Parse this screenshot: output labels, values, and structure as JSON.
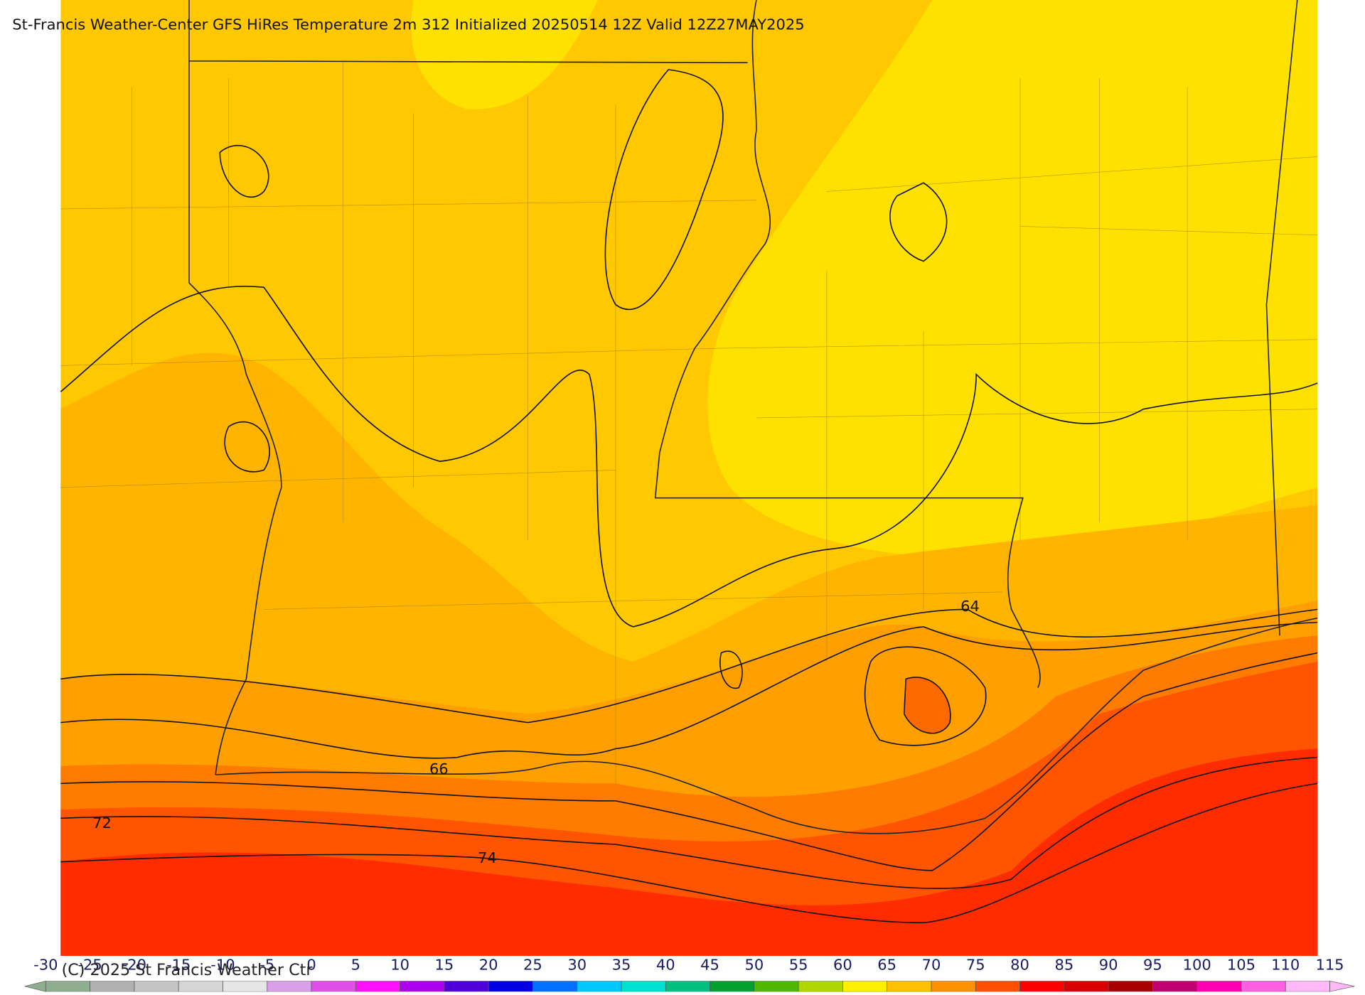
{
  "title": "St-Francis Weather-Center GFS HiRes Temperature 2m  312 Initialized 20250514 12Z Valid 12Z27MAY2025",
  "copyright": "(C) 2025 St Francis Weather Ctr",
  "contour_labels": [
    64,
    66,
    72,
    74
  ],
  "colorbar": {
    "ticks": [
      -30,
      -25,
      -20,
      -15,
      -10,
      -5,
      0,
      5,
      10,
      15,
      20,
      25,
      30,
      35,
      40,
      45,
      50,
      55,
      60,
      65,
      70,
      75,
      80,
      85,
      90,
      95,
      100,
      105,
      110,
      115
    ],
    "colors": [
      "#8fae8f",
      "#b0b0b0",
      "#c4c4c4",
      "#d6d6d6",
      "#e6e6e6",
      "#d9a0e8",
      "#e050e8",
      "#ff10ff",
      "#b000f0",
      "#5000d8",
      "#0000e0",
      "#0070ff",
      "#00c8ff",
      "#00e0d0",
      "#00c080",
      "#00a030",
      "#50b800",
      "#b0d800",
      "#fff000",
      "#ffc000",
      "#ff9000",
      "#ff5000",
      "#ff0000",
      "#d80000",
      "#a80000",
      "#c00070",
      "#ff00b0",
      "#ff60e0",
      "#ffb8f8"
    ]
  }
}
